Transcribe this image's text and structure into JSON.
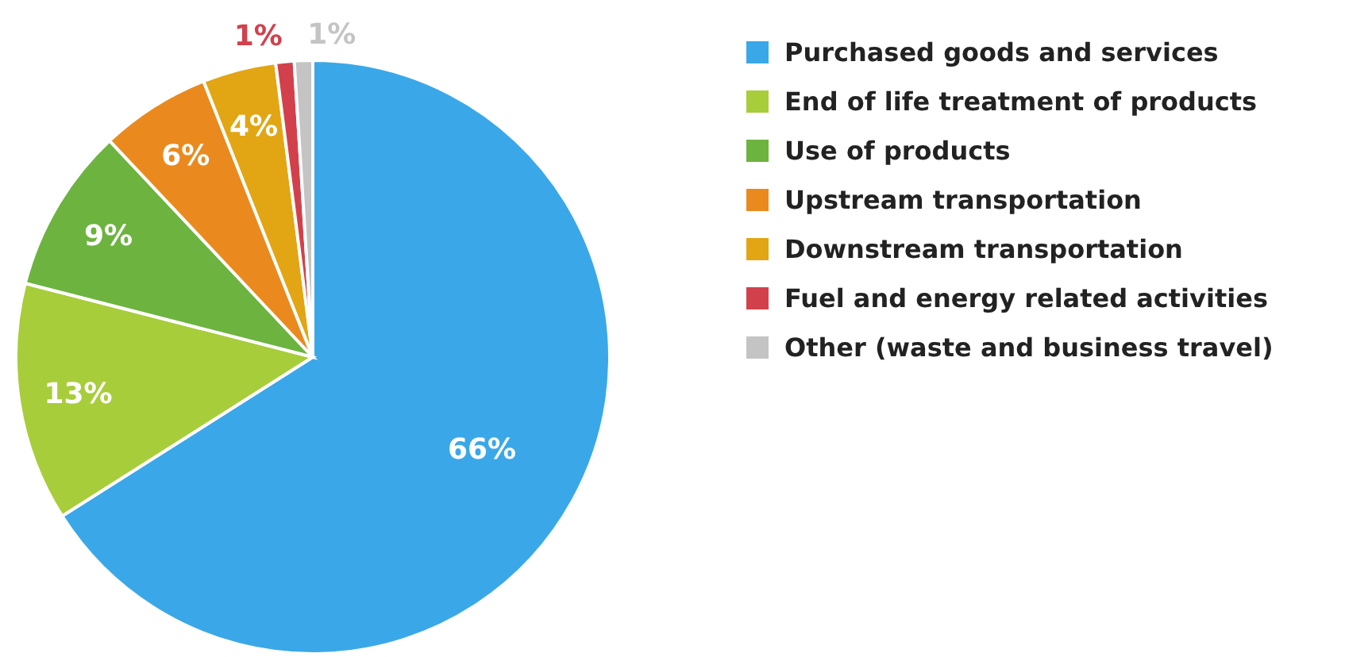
{
  "chart_data": {
    "type": "pie",
    "categories": [
      "Purchased goods and services",
      "End of life treatment of products",
      "Use of products",
      "Upstream transportation",
      "Downstream transportation",
      "Fuel and energy related activities",
      "Other (waste and business travel)"
    ],
    "values": [
      66,
      13,
      9,
      6,
      4,
      1,
      1
    ],
    "colors": [
      "#3aa8e8",
      "#a8cd3a",
      "#6db33f",
      "#ea8a1e",
      "#e2a614",
      "#d2414b",
      "#c4c4c4"
    ],
    "value_labels": [
      "66%",
      "13%",
      "9%",
      "6%",
      "4%",
      "1%",
      "1%"
    ],
    "legend": "right"
  }
}
